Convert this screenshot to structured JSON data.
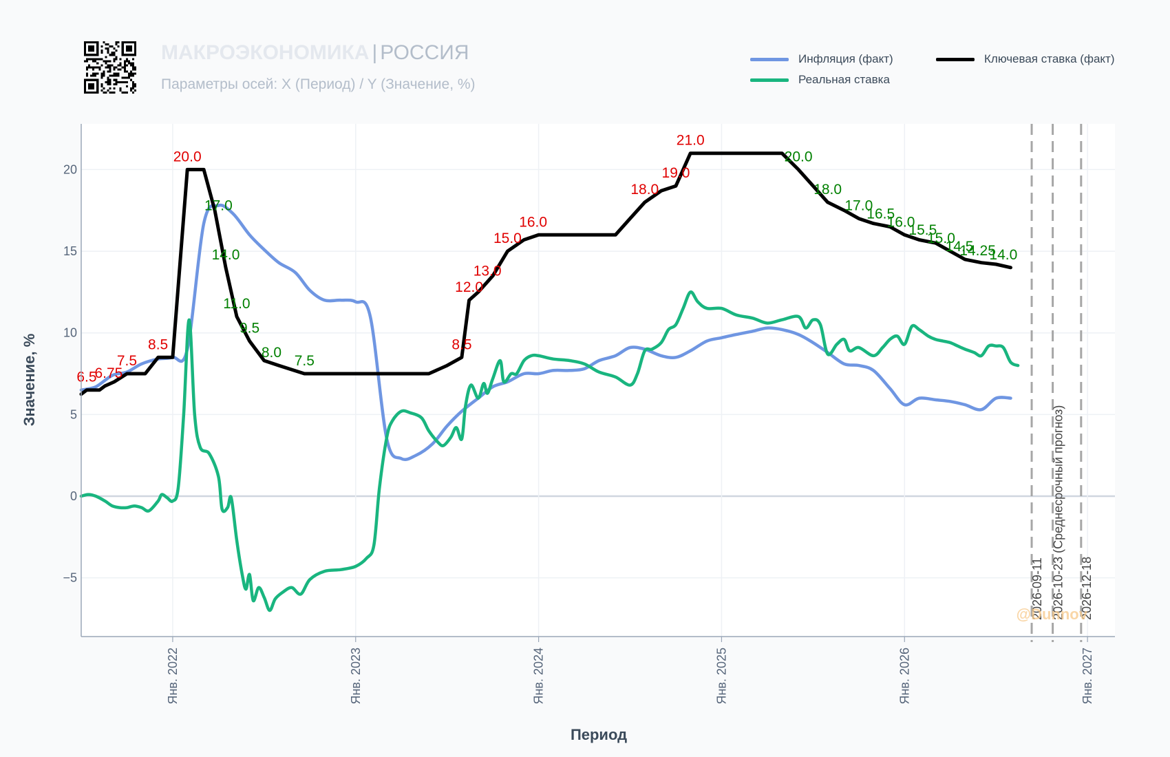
{
  "header": {
    "title_main": "МАКРОЭКОНОМИКА",
    "title_sep": "|",
    "title_country": "РОССИЯ",
    "subtitle": "Параметры осей: X (Период) / Y (Значение, %)"
  },
  "watermark": "@Dunnov",
  "colors": {
    "inflation": "#6f96e2",
    "real": "#19b57f",
    "key": "#000000",
    "label_red": "#e00000",
    "label_green": "#008000",
    "vline": "#a6a6a6"
  },
  "chart_data": {
    "type": "line",
    "xlabel": "Период",
    "ylabel": "Значение, %",
    "xlim": [
      2021.5,
      2027.15
    ],
    "ylim": [
      -8.6,
      22.8
    ],
    "grid": true,
    "legend_position": "top-right",
    "x_ticks": [
      {
        "x": 2022,
        "label": "Янв. 2022"
      },
      {
        "x": 2023,
        "label": "Янв. 2023"
      },
      {
        "x": 2024,
        "label": "Янв. 2024"
      },
      {
        "x": 2025,
        "label": "Янв. 2025"
      },
      {
        "x": 2026,
        "label": "Янв. 2026"
      },
      {
        "x": 2027,
        "label": "Янв. 2027"
      }
    ],
    "y_ticks": [
      {
        "y": 20,
        "label": "20"
      },
      {
        "y": 15,
        "label": "15"
      },
      {
        "y": 10,
        "label": "10"
      },
      {
        "y": 5,
        "label": "5"
      },
      {
        "y": 0,
        "label": "0"
      },
      {
        "y": -5,
        "label": "−5"
      }
    ],
    "series": [
      {
        "name": "Инфляция (факт)",
        "color": "#6f96e2",
        "points": [
          [
            2021.5,
            6.5
          ],
          [
            2021.58,
            6.7
          ],
          [
            2021.67,
            7.4
          ],
          [
            2021.75,
            7.6
          ],
          [
            2021.83,
            8.1
          ],
          [
            2021.92,
            8.4
          ],
          [
            2022.0,
            8.5
          ],
          [
            2022.08,
            9.0
          ],
          [
            2022.17,
            16.7
          ],
          [
            2022.25,
            17.8
          ],
          [
            2022.33,
            17.3
          ],
          [
            2022.42,
            16.0
          ],
          [
            2022.5,
            15.1
          ],
          [
            2022.58,
            14.3
          ],
          [
            2022.67,
            13.7
          ],
          [
            2022.75,
            12.6
          ],
          [
            2022.83,
            12.0
          ],
          [
            2022.92,
            12.0
          ],
          [
            2023.0,
            11.9
          ],
          [
            2023.08,
            11.0
          ],
          [
            2023.17,
            3.5
          ],
          [
            2023.25,
            2.3
          ],
          [
            2023.33,
            2.5
          ],
          [
            2023.42,
            3.2
          ],
          [
            2023.5,
            4.3
          ],
          [
            2023.58,
            5.2
          ],
          [
            2023.67,
            6.0
          ],
          [
            2023.75,
            6.7
          ],
          [
            2023.83,
            7.0
          ],
          [
            2023.92,
            7.5
          ],
          [
            2024.0,
            7.5
          ],
          [
            2024.08,
            7.7
          ],
          [
            2024.17,
            7.7
          ],
          [
            2024.25,
            7.8
          ],
          [
            2024.33,
            8.3
          ],
          [
            2024.42,
            8.6
          ],
          [
            2024.5,
            9.1
          ],
          [
            2024.58,
            9.0
          ],
          [
            2024.67,
            8.6
          ],
          [
            2024.75,
            8.5
          ],
          [
            2024.83,
            8.9
          ],
          [
            2024.92,
            9.5
          ],
          [
            2025.0,
            9.7
          ],
          [
            2025.08,
            9.9
          ],
          [
            2025.17,
            10.1
          ],
          [
            2025.25,
            10.3
          ],
          [
            2025.33,
            10.2
          ],
          [
            2025.42,
            9.9
          ],
          [
            2025.5,
            9.4
          ],
          [
            2025.58,
            8.8
          ],
          [
            2025.67,
            8.1
          ],
          [
            2025.75,
            8.0
          ],
          [
            2025.83,
            7.7
          ],
          [
            2025.92,
            6.6
          ],
          [
            2026.0,
            5.6
          ],
          [
            2026.08,
            6.0
          ],
          [
            2026.17,
            5.9
          ],
          [
            2026.25,
            5.8
          ],
          [
            2026.33,
            5.6
          ],
          [
            2026.42,
            5.3
          ],
          [
            2026.5,
            6.0
          ],
          [
            2026.58,
            6.0
          ]
        ]
      },
      {
        "name": "Реальная ставка",
        "color": "#19b57f",
        "points": [
          [
            2021.5,
            0
          ],
          [
            2021.54,
            0.1
          ],
          [
            2021.58,
            0
          ],
          [
            2021.63,
            -0.3
          ],
          [
            2021.67,
            -0.6
          ],
          [
            2021.71,
            -0.7
          ],
          [
            2021.75,
            -0.7
          ],
          [
            2021.79,
            -0.6
          ],
          [
            2021.83,
            -0.7
          ],
          [
            2021.87,
            -0.9
          ],
          [
            2021.92,
            -0.3
          ],
          [
            2021.94,
            0.1
          ],
          [
            2021.97,
            -0.1
          ],
          [
            2022.0,
            -0.3
          ],
          [
            2022.03,
            0.5
          ],
          [
            2022.06,
            5.0
          ],
          [
            2022.09,
            10.8
          ],
          [
            2022.12,
            5.0
          ],
          [
            2022.15,
            3.0
          ],
          [
            2022.2,
            2.6
          ],
          [
            2022.25,
            1.2
          ],
          [
            2022.27,
            -0.8
          ],
          [
            2022.3,
            -0.7
          ],
          [
            2022.32,
            -0.1
          ],
          [
            2022.35,
            -2.7
          ],
          [
            2022.38,
            -4.8
          ],
          [
            2022.4,
            -5.7
          ],
          [
            2022.42,
            -4.8
          ],
          [
            2022.44,
            -6.4
          ],
          [
            2022.47,
            -5.6
          ],
          [
            2022.5,
            -6.2
          ],
          [
            2022.53,
            -7.0
          ],
          [
            2022.56,
            -6.3
          ],
          [
            2022.6,
            -5.9
          ],
          [
            2022.65,
            -5.6
          ],
          [
            2022.7,
            -6.0
          ],
          [
            2022.75,
            -5.1
          ],
          [
            2022.83,
            -4.6
          ],
          [
            2022.92,
            -4.5
          ],
          [
            2023.0,
            -4.3
          ],
          [
            2023.06,
            -3.8
          ],
          [
            2023.1,
            -3.0
          ],
          [
            2023.13,
            0.5
          ],
          [
            2023.17,
            3.6
          ],
          [
            2023.2,
            4.6
          ],
          [
            2023.25,
            5.2
          ],
          [
            2023.3,
            5.1
          ],
          [
            2023.36,
            4.8
          ],
          [
            2023.4,
            4.0
          ],
          [
            2023.45,
            3.3
          ],
          [
            2023.48,
            3.1
          ],
          [
            2023.52,
            3.6
          ],
          [
            2023.55,
            4.2
          ],
          [
            2023.58,
            3.5
          ],
          [
            2023.6,
            5.5
          ],
          [
            2023.63,
            6.8
          ],
          [
            2023.67,
            6.0
          ],
          [
            2023.7,
            6.9
          ],
          [
            2023.72,
            6.3
          ],
          [
            2023.75,
            7.2
          ],
          [
            2023.79,
            8.3
          ],
          [
            2023.81,
            7.0
          ],
          [
            2023.85,
            7.5
          ],
          [
            2023.88,
            7.5
          ],
          [
            2023.92,
            8.3
          ],
          [
            2023.96,
            8.6
          ],
          [
            2024.0,
            8.6
          ],
          [
            2024.08,
            8.4
          ],
          [
            2024.17,
            8.3
          ],
          [
            2024.25,
            8.1
          ],
          [
            2024.33,
            7.6
          ],
          [
            2024.42,
            7.3
          ],
          [
            2024.5,
            6.8
          ],
          [
            2024.54,
            7.5
          ],
          [
            2024.58,
            8.9
          ],
          [
            2024.62,
            9.0
          ],
          [
            2024.67,
            9.4
          ],
          [
            2024.71,
            10.2
          ],
          [
            2024.75,
            10.5
          ],
          [
            2024.79,
            11.5
          ],
          [
            2024.83,
            12.5
          ],
          [
            2024.87,
            11.9
          ],
          [
            2024.92,
            11.5
          ],
          [
            2025.0,
            11.5
          ],
          [
            2025.08,
            11.1
          ],
          [
            2025.17,
            10.9
          ],
          [
            2025.25,
            10.6
          ],
          [
            2025.33,
            10.8
          ],
          [
            2025.42,
            11.0
          ],
          [
            2025.46,
            10.3
          ],
          [
            2025.5,
            10.8
          ],
          [
            2025.54,
            10.5
          ],
          [
            2025.58,
            8.7
          ],
          [
            2025.63,
            9.3
          ],
          [
            2025.67,
            9.6
          ],
          [
            2025.7,
            8.9
          ],
          [
            2025.75,
            9.1
          ],
          [
            2025.83,
            8.6
          ],
          [
            2025.88,
            9.1
          ],
          [
            2025.92,
            9.6
          ],
          [
            2025.96,
            9.8
          ],
          [
            2026.0,
            9.3
          ],
          [
            2026.04,
            10.4
          ],
          [
            2026.08,
            10.2
          ],
          [
            2026.13,
            9.8
          ],
          [
            2026.17,
            9.6
          ],
          [
            2026.21,
            9.5
          ],
          [
            2026.25,
            9.4
          ],
          [
            2026.29,
            9.2
          ],
          [
            2026.33,
            9.0
          ],
          [
            2026.38,
            8.8
          ],
          [
            2026.42,
            8.6
          ],
          [
            2026.46,
            9.2
          ],
          [
            2026.5,
            9.2
          ],
          [
            2026.54,
            9.1
          ],
          [
            2026.58,
            8.2
          ],
          [
            2026.62,
            8.0
          ]
        ]
      },
      {
        "name": "Ключевая ставка (факт)",
        "color": "#000000",
        "points": [
          [
            2021.5,
            6.25
          ],
          [
            2021.53,
            6.5
          ],
          [
            2021.6,
            6.5
          ],
          [
            2021.63,
            6.75
          ],
          [
            2021.68,
            7.0
          ],
          [
            2021.75,
            7.5
          ],
          [
            2021.85,
            7.5
          ],
          [
            2021.92,
            8.5
          ],
          [
            2022.0,
            8.5
          ],
          [
            2022.08,
            20.0
          ],
          [
            2022.17,
            20.0
          ],
          [
            2022.23,
            17.5
          ],
          [
            2022.29,
            14.0
          ],
          [
            2022.35,
            11.0
          ],
          [
            2022.42,
            9.5
          ],
          [
            2022.5,
            8.3
          ],
          [
            2022.58,
            8.0
          ],
          [
            2022.72,
            7.5
          ],
          [
            2023.0,
            7.5
          ],
          [
            2023.4,
            7.5
          ],
          [
            2023.5,
            8.0
          ],
          [
            2023.58,
            8.5
          ],
          [
            2023.62,
            12.0
          ],
          [
            2023.67,
            12.5
          ],
          [
            2023.75,
            13.5
          ],
          [
            2023.83,
            15.0
          ],
          [
            2023.92,
            15.7
          ],
          [
            2024.0,
            16.0
          ],
          [
            2024.42,
            16.0
          ],
          [
            2024.5,
            17.0
          ],
          [
            2024.58,
            18.0
          ],
          [
            2024.67,
            18.7
          ],
          [
            2024.75,
            19.0
          ],
          [
            2024.83,
            21.0
          ],
          [
            2025.0,
            21.0
          ],
          [
            2025.25,
            21.0
          ],
          [
            2025.33,
            21.0
          ],
          [
            2025.42,
            20.0
          ],
          [
            2025.5,
            19.0
          ],
          [
            2025.58,
            18.0
          ],
          [
            2025.67,
            17.5
          ],
          [
            2025.75,
            17.0
          ],
          [
            2025.83,
            16.7
          ],
          [
            2025.92,
            16.5
          ],
          [
            2026.0,
            16.0
          ],
          [
            2026.08,
            15.7
          ],
          [
            2026.17,
            15.5
          ],
          [
            2026.25,
            15.0
          ],
          [
            2026.33,
            14.5
          ],
          [
            2026.42,
            14.3
          ],
          [
            2026.5,
            14.2
          ],
          [
            2026.58,
            14.0
          ]
        ]
      }
    ],
    "point_labels": [
      {
        "x": 2021.53,
        "y": 6.5,
        "text": "6.5",
        "color": "#e00000"
      },
      {
        "x": 2021.65,
        "y": 6.75,
        "text": "6.75",
        "color": "#e00000"
      },
      {
        "x": 2021.75,
        "y": 7.5,
        "text": "7.5",
        "color": "#e00000"
      },
      {
        "x": 2021.92,
        "y": 8.5,
        "text": "8.5",
        "color": "#e00000"
      },
      {
        "x": 2022.08,
        "y": 20.0,
        "text": "20.0",
        "color": "#e00000"
      },
      {
        "x": 2022.25,
        "y": 17.0,
        "text": "17.0",
        "color": "#008000"
      },
      {
        "x": 2022.29,
        "y": 14.0,
        "text": "14.0",
        "color": "#008000"
      },
      {
        "x": 2022.35,
        "y": 11.0,
        "text": "11.0",
        "color": "#008000"
      },
      {
        "x": 2022.42,
        "y": 9.5,
        "text": "9.5",
        "color": "#008000"
      },
      {
        "x": 2022.54,
        "y": 8.0,
        "text": "8.0",
        "color": "#008000"
      },
      {
        "x": 2022.72,
        "y": 7.5,
        "text": "7.5",
        "color": "#008000"
      },
      {
        "x": 2023.58,
        "y": 8.5,
        "text": "8.5",
        "color": "#e00000"
      },
      {
        "x": 2023.62,
        "y": 12.0,
        "text": "12.0",
        "color": "#e00000"
      },
      {
        "x": 2023.72,
        "y": 13.0,
        "text": "13.0",
        "color": "#e00000"
      },
      {
        "x": 2023.83,
        "y": 15.0,
        "text": "15.0",
        "color": "#e00000"
      },
      {
        "x": 2023.97,
        "y": 16.0,
        "text": "16.0",
        "color": "#e00000"
      },
      {
        "x": 2024.58,
        "y": 18.0,
        "text": "18.0",
        "color": "#e00000"
      },
      {
        "x": 2024.75,
        "y": 19.0,
        "text": "19.0",
        "color": "#e00000"
      },
      {
        "x": 2024.83,
        "y": 21.0,
        "text": "21.0",
        "color": "#e00000"
      },
      {
        "x": 2025.42,
        "y": 20.0,
        "text": "20.0",
        "color": "#008000"
      },
      {
        "x": 2025.58,
        "y": 18.0,
        "text": "18.0",
        "color": "#008000"
      },
      {
        "x": 2025.75,
        "y": 17.0,
        "text": "17.0",
        "color": "#008000"
      },
      {
        "x": 2025.87,
        "y": 16.5,
        "text": "16.5",
        "color": "#008000"
      },
      {
        "x": 2025.98,
        "y": 16.0,
        "text": "16.0",
        "color": "#008000"
      },
      {
        "x": 2026.1,
        "y": 15.5,
        "text": "15.5",
        "color": "#008000"
      },
      {
        "x": 2026.2,
        "y": 15.0,
        "text": "15.0",
        "color": "#008000"
      },
      {
        "x": 2026.3,
        "y": 14.5,
        "text": "14.5",
        "color": "#008000"
      },
      {
        "x": 2026.4,
        "y": 14.25,
        "text": "14.25",
        "color": "#008000"
      },
      {
        "x": 2026.54,
        "y": 14.0,
        "text": "14.0",
        "color": "#008000"
      }
    ],
    "vlines": [
      {
        "x": 2026.695,
        "label": "2026-09-11"
      },
      {
        "x": 2026.81,
        "label": "2026-10-23 (Среднесрочный прогноз)"
      },
      {
        "x": 2026.965,
        "label": "2026-12-18"
      }
    ]
  }
}
